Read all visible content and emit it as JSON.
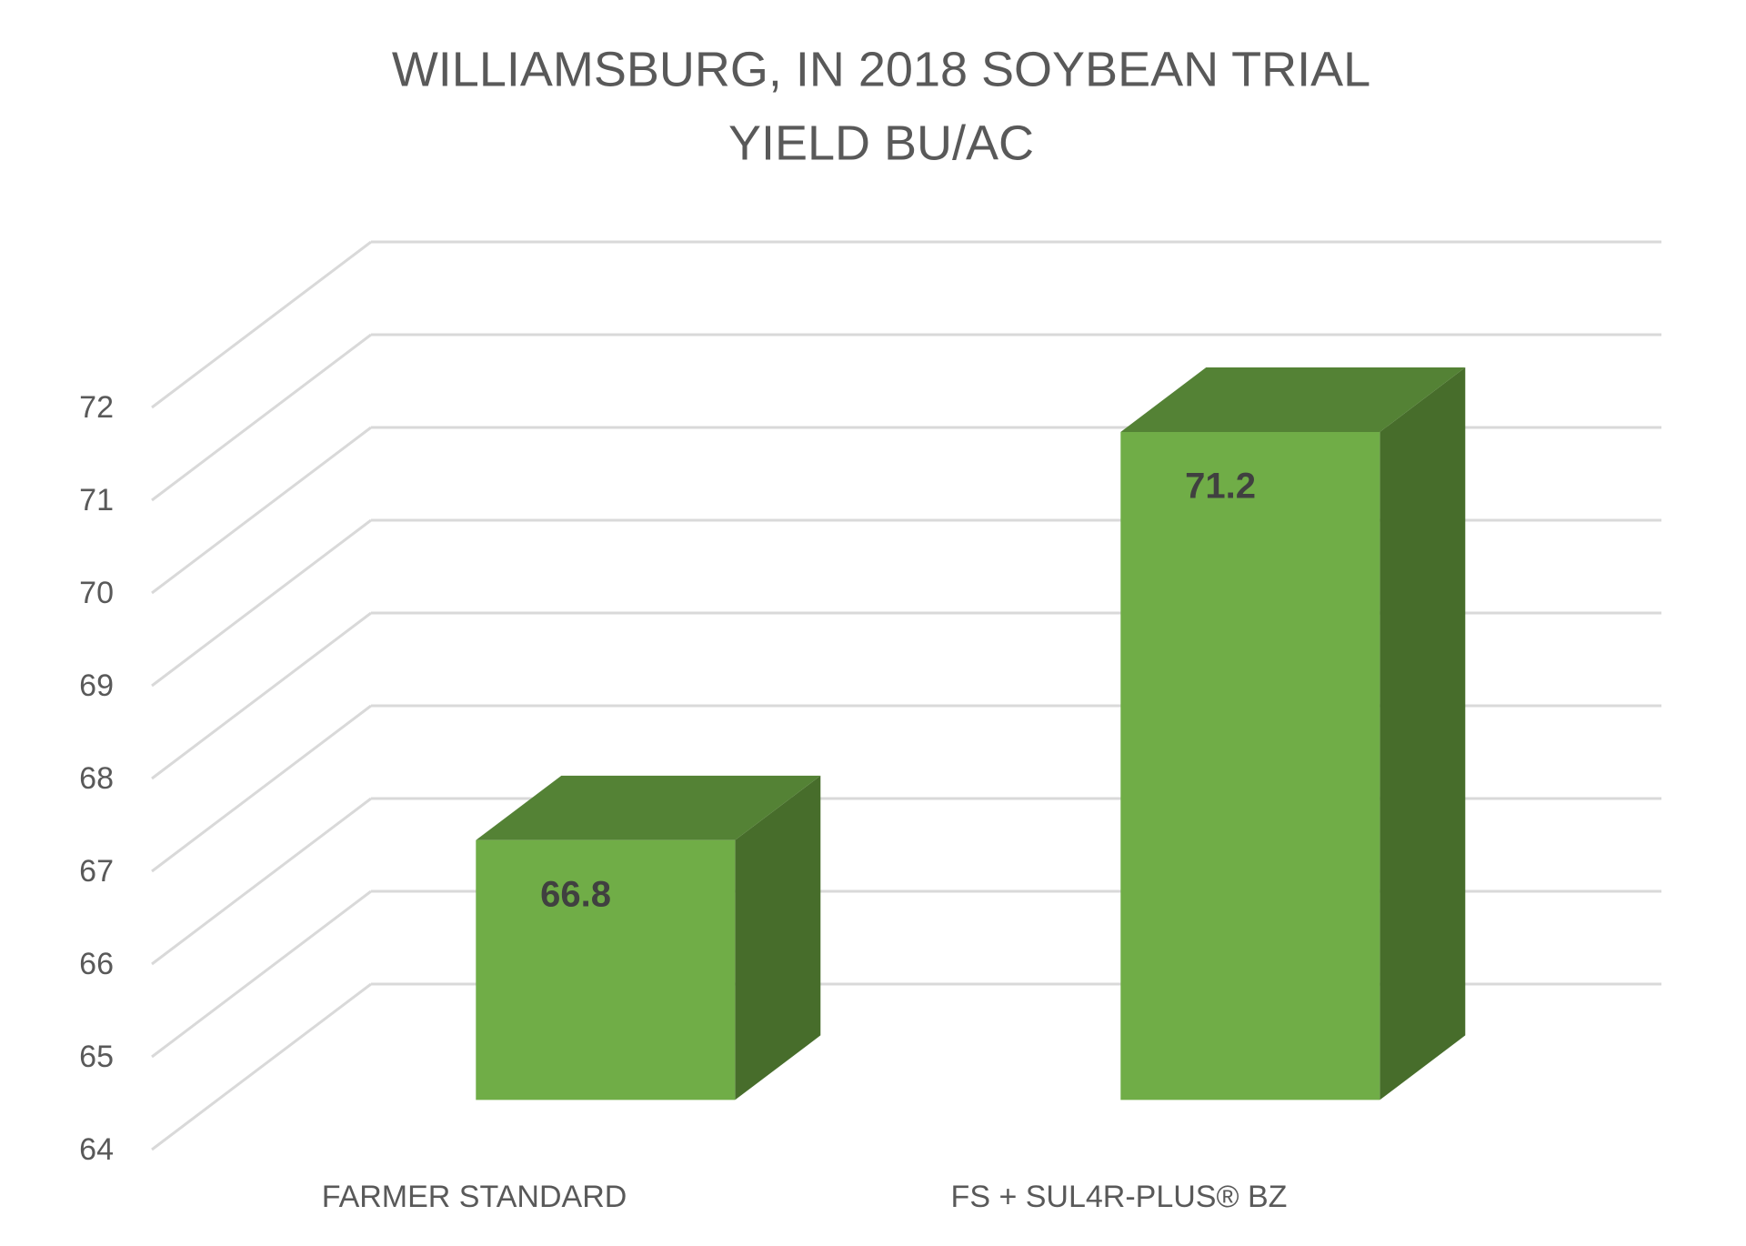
{
  "chart_data": {
    "type": "bar3d",
    "title": "WILLIAMSBURG, IN 2018 SOYBEAN TRIAL",
    "subtitle": "YIELD BU/AC",
    "categories": [
      "FARMER STANDARD",
      "FS + SUL4R-PLUS® BZ"
    ],
    "values": [
      66.8,
      71.2
    ],
    "color": "#70ad47",
    "ylim": [
      64,
      72
    ],
    "yticks": [
      64,
      65,
      66,
      67,
      68,
      69,
      70,
      71,
      72
    ],
    "grid": true
  }
}
